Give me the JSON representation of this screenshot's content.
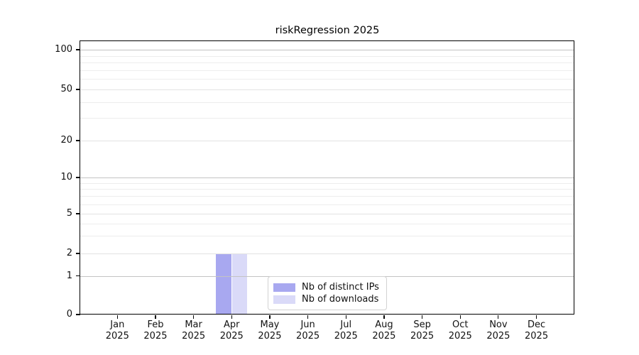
{
  "chart_data": {
    "type": "bar",
    "title": "riskRegression 2025",
    "categories": [
      "Jan",
      "Feb",
      "Mar",
      "Apr",
      "May",
      "Jun",
      "Jul",
      "Aug",
      "Sep",
      "Oct",
      "Nov",
      "Dec"
    ],
    "x_year_label": "2025",
    "series": [
      {
        "name": "Nb of distinct IPs",
        "color": "#a8a8f0",
        "values": [
          0,
          0,
          0,
          2,
          0,
          0,
          0,
          0,
          0,
          0,
          0,
          0
        ]
      },
      {
        "name": "Nb of downloads",
        "color": "#dadaf8",
        "values": [
          0,
          0,
          0,
          2,
          0,
          0,
          0,
          0,
          0,
          0,
          0,
          0
        ]
      }
    ],
    "y_axis": {
      "scale": "log-like",
      "tick_labels": [
        0,
        1,
        2,
        5,
        10,
        20,
        50,
        100
      ],
      "major_gridlines_at": [
        1,
        10,
        100
      ],
      "minor_gridlines_at": [
        3,
        4,
        6,
        7,
        8,
        9,
        30,
        40,
        60,
        70,
        80,
        90
      ]
    },
    "legend": {
      "position": "lower-center",
      "entries": [
        "Nb of distinct IPs",
        "Nb of downloads"
      ]
    },
    "grid": "on"
  }
}
